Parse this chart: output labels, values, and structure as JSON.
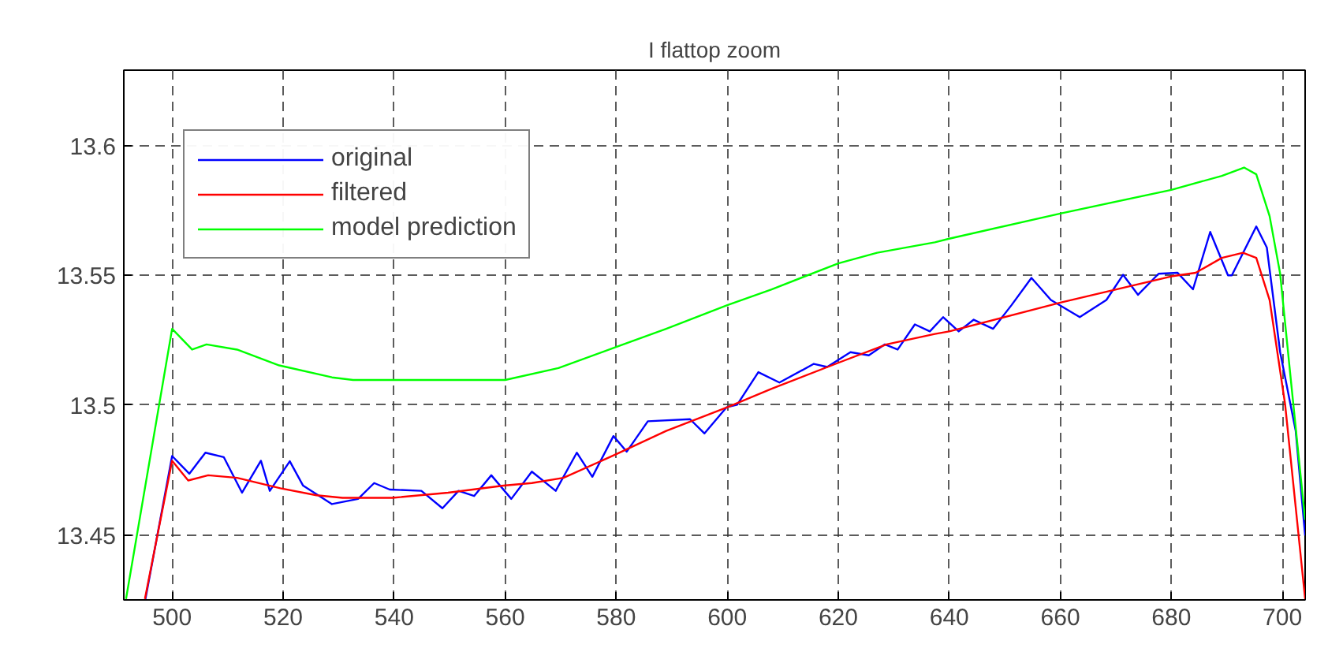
{
  "chart_data": {
    "type": "line",
    "title": "I flattop zoom",
    "xlim": [
      491.3,
      704.1
    ],
    "ylim": [
      13.425,
      13.629
    ],
    "xticks": [
      500,
      520,
      540,
      560,
      580,
      600,
      620,
      640,
      660,
      680,
      700
    ],
    "yticks": [
      13.45,
      13.5,
      13.55,
      13.6
    ],
    "grid": true,
    "legend": "top left",
    "line_style": "solid",
    "series": [
      {
        "name": "original",
        "color": "#0000ff",
        "x": [
          495.2,
          500,
          503.1,
          506,
          509.3,
          512.6,
          516,
          517.6,
          521.2,
          523.6,
          528.8,
          533.5,
          536.4,
          539.2,
          544.9,
          548.7,
          551.6,
          554.4,
          557.5,
          561.1,
          564.8,
          569.1,
          572.9,
          575.7,
          579.5,
          581.9,
          585.7,
          593.3,
          595.9,
          599.9,
          601.8,
          605.6,
          609.4,
          615.6,
          618,
          622.2,
          625.5,
          628.4,
          630.7,
          633.8,
          636.5,
          638.9,
          641.7,
          644.4,
          647.9,
          651.2,
          654.8,
          658.3,
          663.5,
          668.3,
          671.3,
          674,
          677.7,
          681.1,
          683.9,
          687,
          690.2,
          690.9,
          695.3,
          697.2,
          699.6,
          702.4,
          704.1
        ],
        "values": [
          13.4254,
          13.4804,
          13.4736,
          13.4817,
          13.48,
          13.4663,
          13.4786,
          13.467,
          13.4784,
          13.469,
          13.4619,
          13.4639,
          13.47,
          13.4675,
          13.467,
          13.4603,
          13.467,
          13.465,
          13.473,
          13.4639,
          13.4744,
          13.467,
          13.4817,
          13.4724,
          13.4881,
          13.4821,
          13.4938,
          13.4946,
          13.4891,
          13.4992,
          13.5002,
          13.5127,
          13.5087,
          13.5159,
          13.5147,
          13.5204,
          13.5192,
          13.5234,
          13.5214,
          13.5311,
          13.5284,
          13.5339,
          13.5284,
          13.5329,
          13.5294,
          13.5385,
          13.549,
          13.5405,
          13.5339,
          13.5405,
          13.5502,
          13.5425,
          13.5506,
          13.551,
          13.5446,
          13.5667,
          13.55,
          13.55,
          13.5688,
          13.5607,
          13.5204,
          13.4901,
          13.4498
        ]
      },
      {
        "name": "filtered",
        "color": "#ff0000",
        "x": [
          495.1,
          500,
          502.9,
          506.5,
          511.7,
          519.5,
          526,
          530.7,
          539.7,
          549.7,
          559.7,
          564.8,
          570.5,
          580,
          589,
          600,
          608,
          620,
          628.7,
          637.4,
          640,
          660,
          680,
          684.4,
          689.1,
          692.9,
          695.3,
          697.7,
          700.5,
          704.1
        ],
        "values": [
          13.4254,
          13.4786,
          13.471,
          13.473,
          13.472,
          13.468,
          13.4653,
          13.4643,
          13.4643,
          13.4663,
          13.469,
          13.47,
          13.472,
          13.4811,
          13.4901,
          13.4992,
          13.5063,
          13.5163,
          13.5234,
          13.5274,
          13.5284,
          13.5395,
          13.5496,
          13.551,
          13.5567,
          13.5587,
          13.5567,
          13.5405,
          13.5002,
          13.4254
        ]
      },
      {
        "name": "model prediction",
        "color": "#00ff00",
        "x": [
          491.7,
          500,
          503.6,
          506.2,
          511.7,
          519.3,
          528.8,
          532.6,
          560,
          569.6,
          580,
          589,
          600,
          608,
          620,
          627,
          637.4,
          640,
          660,
          680,
          689.1,
          693.1,
          695.3,
          697.7,
          699.6,
          701.5,
          704.1
        ],
        "values": [
          13.4254,
          13.5294,
          13.5214,
          13.5234,
          13.5214,
          13.5153,
          13.5107,
          13.5097,
          13.5097,
          13.5143,
          13.5224,
          13.5294,
          13.5385,
          13.5446,
          13.5546,
          13.5587,
          13.5627,
          13.5641,
          13.5738,
          13.5829,
          13.5883,
          13.5915,
          13.5889,
          13.5728,
          13.5506,
          13.5103,
          13.4558
        ]
      }
    ]
  }
}
